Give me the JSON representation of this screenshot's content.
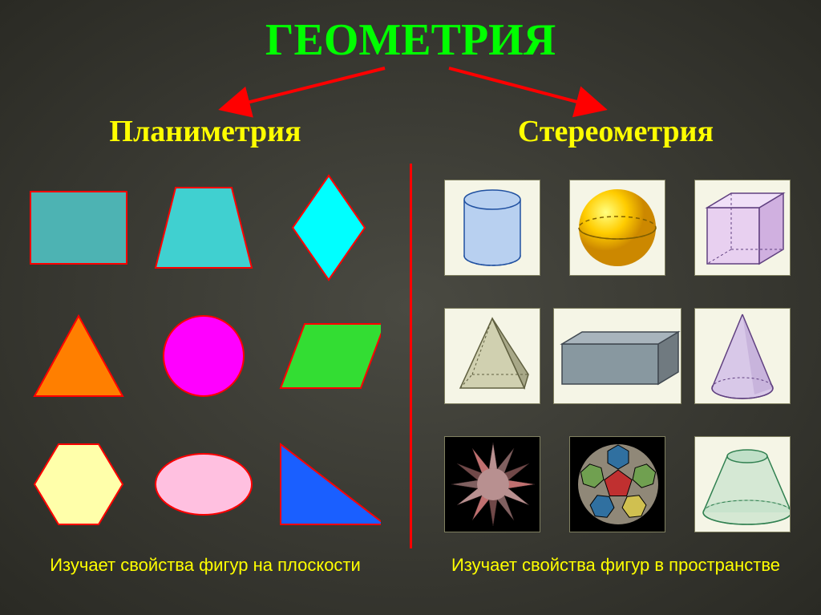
{
  "title": {
    "text": "ГЕОМЕТРИЯ",
    "color": "#00ff00",
    "fontsize": 56
  },
  "subtitle_left": {
    "text": "Планиметрия",
    "color": "#ffff00",
    "fontsize": 38
  },
  "subtitle_right": {
    "text": "Стереометрия",
    "color": "#ffff00",
    "fontsize": 38
  },
  "caption_left": {
    "text": "Изучает свойства фигур на плоскости",
    "color": "#ffff00",
    "fontsize": 22
  },
  "caption_right": {
    "text": "Изучает свойства фигур в пространстве",
    "color": "#ffff00",
    "fontsize": 22
  },
  "arrow_color": "#ff0000",
  "divider_color": "#ff0000",
  "flat_shapes": {
    "stroke": "#ff0000",
    "stroke_width": 2,
    "rectangle": {
      "fill": "#4db3b3"
    },
    "trapezoid": {
      "fill": "#40d0d0"
    },
    "rhombus": {
      "fill": "#00ffff"
    },
    "triangle": {
      "fill": "#ff7f00"
    },
    "circle": {
      "fill": "#ff00ff"
    },
    "parallelogram": {
      "fill": "#33dd33"
    },
    "hexagon": {
      "fill": "#ffffaa"
    },
    "ellipse": {
      "fill": "#ffc0e0"
    },
    "right_triangle": {
      "fill": "#1a5fff"
    }
  },
  "solid_shapes": {
    "tile_bg": "#f5f5e6",
    "tile_border": "#808060",
    "cylinder": {
      "fill": "#b8d0f0",
      "stroke": "#2050a0"
    },
    "sphere": {
      "colors": [
        "#ffff80",
        "#ffcc00",
        "#cc8800"
      ],
      "stroke": "#806000"
    },
    "cube": {
      "fill_front": "#e8d0f0",
      "fill_side": "#d0b0e0",
      "fill_top": "#f0e0f8",
      "stroke": "#604080"
    },
    "pyramid": {
      "fill_front": "#d0d0b0",
      "fill_side": "#a8a888",
      "stroke": "#606040"
    },
    "cuboid": {
      "fill_front": "#8898a0",
      "fill_side": "#707a80",
      "fill_top": "#a8b4bc",
      "stroke": "#404850"
    },
    "cone": {
      "fill": "#d8c8e8",
      "fill_side": "#b8a0d0",
      "stroke": "#604080"
    },
    "stellated": {
      "bg": "#000000",
      "colors": [
        "#c07070",
        "#b89090",
        "#806060",
        "#704848"
      ]
    },
    "truncated": {
      "bg": "#000000",
      "colors": [
        "#c03030",
        "#3070a0",
        "#70a050",
        "#d0c050",
        "#908878"
      ]
    },
    "frustum": {
      "fill": "#c0e0c8",
      "stroke": "#308050"
    }
  }
}
